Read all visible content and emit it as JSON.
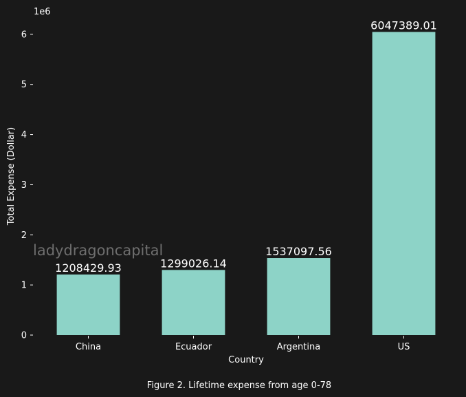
{
  "chart_data": {
    "type": "bar",
    "categories": [
      "China",
      "Ecuador",
      "Argentina",
      "US"
    ],
    "values": [
      1208429.93,
      1299026.14,
      1537097.56,
      6047389.01
    ],
    "data_labels": [
      "1208429.93",
      "1299026.14",
      "1537097.56",
      "6047389.01"
    ],
    "xlabel": "Country",
    "ylabel": "Total Expense (Dollar)",
    "ylim": [
      0,
      6300000
    ],
    "yticks": [
      0,
      1000000,
      2000000,
      3000000,
      4000000,
      5000000,
      6000000
    ],
    "ytick_labels": [
      "0",
      "1",
      "2",
      "3",
      "4",
      "5",
      "6"
    ],
    "y_multiplier_label": "1e6",
    "caption": "Figure 2. Lifetime expense from age 0-78",
    "watermark": "ladydragoncapital",
    "grid": false,
    "bar_color": "#8dd3c7",
    "background_color": "#191919",
    "text_color": "#ffffff"
  }
}
